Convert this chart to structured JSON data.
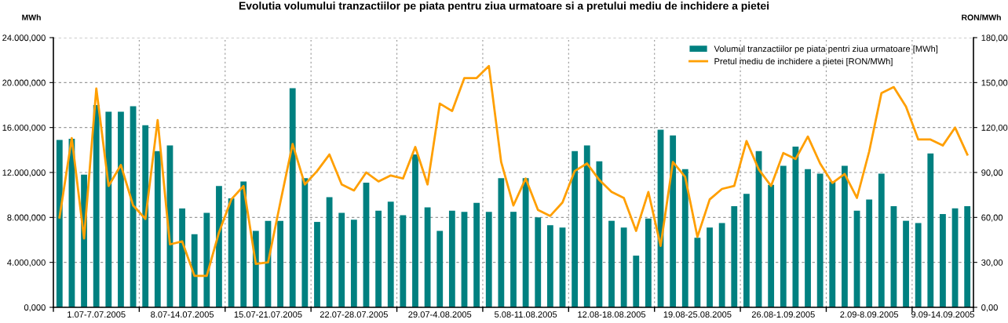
{
  "chart_data": {
    "type": "bar",
    "title": "Evolutia volumului tranzactiilor pe piata pentru ziua urmatoare si a pretului mediu de inchidere a pietei",
    "ylabel": "MWh",
    "y2label": "RON/MWh",
    "categories": [
      null,
      null,
      null,
      "1.07-7.07.2005",
      null,
      null,
      null,
      null,
      null,
      null,
      "8.07-14.07.2005",
      null,
      null,
      null,
      null,
      null,
      null,
      "15.07-21.07.2005",
      null,
      null,
      null,
      null,
      null,
      null,
      "22.07-28.07.2005",
      null,
      null,
      null,
      null,
      null,
      null,
      "29.07-4.08.2005",
      null,
      null,
      null,
      null,
      null,
      null,
      "5.08-11.08.2005",
      null,
      null,
      null,
      null,
      null,
      null,
      "12.08-18.08.2005",
      null,
      null,
      null,
      null,
      null,
      null,
      "19.08-25.08.2005",
      null,
      null,
      null,
      null,
      null,
      null,
      "26.08-1.09.2005",
      null,
      null,
      null,
      null,
      null,
      null,
      "2.09-8.09.2005",
      null,
      null,
      null,
      null,
      null,
      "9.09-14.09.2005",
      null,
      null
    ],
    "series": [
      {
        "name": "Volumul tranzactiilor pe piata pentri ziua urmatoare [MWh]",
        "color": "#008080",
        "values": [
          14900,
          15000,
          11800,
          18000,
          17400,
          17400,
          17900,
          16200,
          13900,
          14400,
          8800,
          6500,
          8400,
          10800,
          9700,
          11200,
          6800,
          7700,
          7700,
          19500,
          11500,
          7600,
          9800,
          8400,
          7800,
          11100,
          8600,
          9400,
          8200,
          13600,
          8900,
          6800,
          8600,
          8500,
          9300,
          8500,
          11500,
          8500,
          11500,
          8000,
          7300,
          7100,
          13900,
          14400,
          13000,
          7700,
          7100,
          4600,
          7900,
          15800,
          15300,
          12300,
          6200,
          7100,
          7500,
          9000,
          10100,
          13900,
          10900,
          12600,
          14300,
          12300,
          11900,
          11200,
          12600,
          8600,
          9600,
          11900,
          9000,
          7700,
          7500,
          13700,
          8300,
          8800,
          9000
        ]
      },
      {
        "name": "Pretul mediu de inchidere a pietei [RON/MWh]",
        "type": "line",
        "axis": "y2",
        "color": "#ff9f00",
        "values": [
          60,
          113,
          46,
          146,
          81,
          95,
          68,
          59,
          125,
          42,
          44,
          21,
          21,
          50,
          72,
          81,
          29,
          30,
          70,
          109,
          82,
          91,
          102,
          82,
          78,
          90,
          84,
          88,
          86,
          107,
          82,
          136,
          131,
          153,
          153,
          161,
          97,
          68,
          86,
          65,
          61,
          70,
          91,
          96,
          85,
          77,
          73,
          51,
          77,
          41,
          97,
          87,
          47,
          72,
          79,
          81,
          111,
          92,
          81,
          103,
          99,
          114,
          96,
          83,
          89,
          73,
          104,
          143,
          147,
          134,
          112,
          112,
          108,
          120,
          102
        ]
      }
    ],
    "ylim": [
      0,
      24000
    ],
    "yticks": [
      {
        "value": 0,
        "label": "0,000"
      },
      {
        "value": 4000,
        "label": "4.000,000"
      },
      {
        "value": 8000,
        "label": "8.000,000"
      },
      {
        "value": 12000,
        "label": "12.000,000"
      },
      {
        "value": 16000,
        "label": "16.000,000"
      },
      {
        "value": 20000,
        "label": "20.000,000"
      },
      {
        "value": 24000,
        "label": "24.000,000"
      }
    ],
    "y2lim": [
      0,
      180
    ],
    "y2ticks": [
      {
        "value": 0,
        "label": "0,00"
      },
      {
        "value": 30,
        "label": "30,00"
      },
      {
        "value": 60,
        "label": "60,00"
      },
      {
        "value": 90,
        "label": "90,00"
      },
      {
        "value": 120,
        "label": "120,00"
      },
      {
        "value": 150,
        "label": "150,00"
      },
      {
        "value": 180,
        "label": "180,00"
      }
    ],
    "grid": true,
    "legend": "top right",
    "line_style": "solid",
    "marker": "none"
  }
}
